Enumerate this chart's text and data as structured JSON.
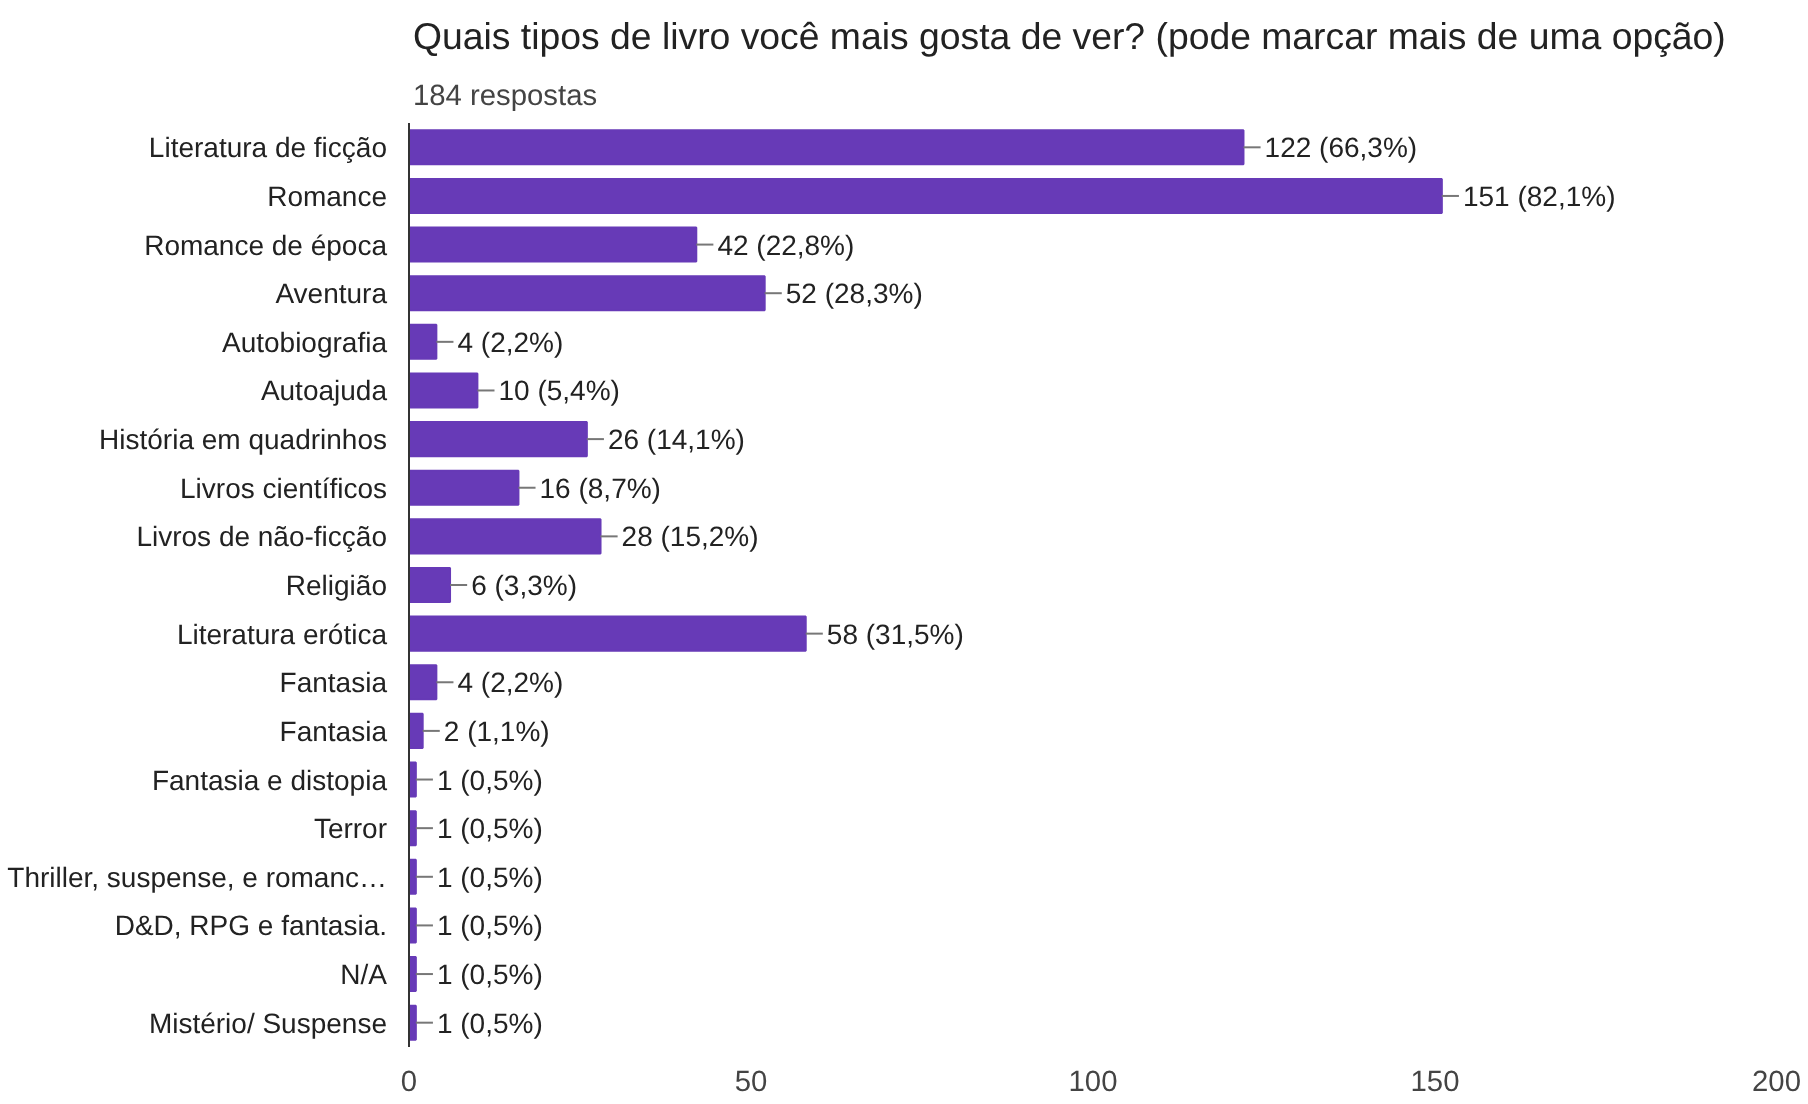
{
  "chart_data": {
    "type": "bar",
    "orientation": "horizontal",
    "title": "Quais tipos de livro você mais gosta de ver? (pode marcar mais de uma opção)",
    "subtitle": "184 respostas",
    "categories": [
      "Literatura de ficção",
      "Romance",
      "Romance de época",
      "Aventura",
      "Autobiografia",
      "Autoajuda",
      "História em quadrinhos",
      "Livros científicos",
      "Livros de não-ficção",
      "Religião",
      "Literatura erótica",
      "Fantasia",
      "Fantasia",
      "Fantasia e distopia",
      "Terror",
      "Thriller, suspense, e romanc…",
      "D&D, RPG e fantasia.",
      "N/A",
      "Mistério/ Suspense"
    ],
    "values": [
      122,
      151,
      42,
      52,
      4,
      10,
      26,
      16,
      28,
      6,
      58,
      4,
      2,
      1,
      1,
      1,
      1,
      1,
      1
    ],
    "value_labels": [
      "122 (66,3%)",
      "151 (82,1%)",
      "42 (22,8%)",
      "52 (28,3%)",
      "4 (2,2%)",
      "10 (5,4%)",
      "26 (14,1%)",
      "16 (8,7%)",
      "28 (15,2%)",
      "6 (3,3%)",
      "58 (31,5%)",
      "4 (2,2%)",
      "2 (1,1%)",
      "1 (0,5%)",
      "1 (0,5%)",
      "1 (0,5%)",
      "1 (0,5%)",
      "1 (0,5%)",
      "1 (0,5%)"
    ],
    "color": "#673ab7",
    "xlim": [
      0,
      200
    ],
    "xticks": [
      0,
      50,
      100,
      150,
      200
    ],
    "grid": false
  }
}
